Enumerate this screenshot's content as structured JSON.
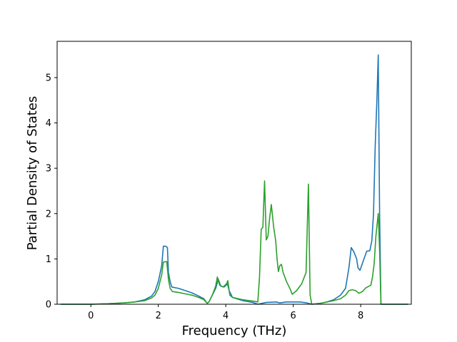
{
  "chart_data": {
    "type": "line",
    "title": "",
    "xlabel": "Frequency (THz)",
    "ylabel": "Partial Density of States",
    "xlim": [
      -1.0,
      9.5
    ],
    "ylim": [
      0,
      5.8
    ],
    "xticks": [
      0,
      2,
      4,
      6,
      8
    ],
    "yticks": [
      0,
      1,
      2,
      3,
      4,
      5
    ],
    "xtick_labels": [
      "0",
      "2",
      "4",
      "6",
      "8"
    ],
    "ytick_labels": [
      "0",
      "1",
      "2",
      "3",
      "4",
      "5"
    ],
    "grid": false,
    "legend": "none",
    "series": [
      {
        "color": "#1f77b4",
        "points": [
          [
            -0.9,
            0.0
          ],
          [
            -0.5,
            0.0
          ],
          [
            0.0,
            0.0
          ],
          [
            0.5,
            0.01
          ],
          [
            1.0,
            0.03
          ],
          [
            1.3,
            0.05
          ],
          [
            1.6,
            0.1
          ],
          [
            1.8,
            0.18
          ],
          [
            1.9,
            0.28
          ],
          [
            2.0,
            0.5
          ],
          [
            2.1,
            0.85
          ],
          [
            2.15,
            1.28
          ],
          [
            2.22,
            1.28
          ],
          [
            2.27,
            1.25
          ],
          [
            2.3,
            0.7
          ],
          [
            2.35,
            0.5
          ],
          [
            2.4,
            0.38
          ],
          [
            2.6,
            0.35
          ],
          [
            2.8,
            0.3
          ],
          [
            3.0,
            0.25
          ],
          [
            3.2,
            0.18
          ],
          [
            3.35,
            0.12
          ],
          [
            3.45,
            0.02
          ],
          [
            3.5,
            0.05
          ],
          [
            3.6,
            0.2
          ],
          [
            3.7,
            0.35
          ],
          [
            3.78,
            0.55
          ],
          [
            3.85,
            0.4
          ],
          [
            3.95,
            0.38
          ],
          [
            4.05,
            0.45
          ],
          [
            4.1,
            0.3
          ],
          [
            4.2,
            0.15
          ],
          [
            4.5,
            0.08
          ],
          [
            4.8,
            0.04
          ],
          [
            4.95,
            0.0
          ],
          [
            5.2,
            0.04
          ],
          [
            5.5,
            0.05
          ],
          [
            5.6,
            0.03
          ],
          [
            5.8,
            0.05
          ],
          [
            6.0,
            0.05
          ],
          [
            6.2,
            0.05
          ],
          [
            6.4,
            0.03
          ],
          [
            6.55,
            0.0
          ],
          [
            6.8,
            0.02
          ],
          [
            7.0,
            0.05
          ],
          [
            7.2,
            0.1
          ],
          [
            7.4,
            0.2
          ],
          [
            7.55,
            0.35
          ],
          [
            7.65,
            0.8
          ],
          [
            7.72,
            1.25
          ],
          [
            7.8,
            1.15
          ],
          [
            7.88,
            1.0
          ],
          [
            7.92,
            0.8
          ],
          [
            7.98,
            0.75
          ],
          [
            8.05,
            0.9
          ],
          [
            8.12,
            1.05
          ],
          [
            8.18,
            1.17
          ],
          [
            8.27,
            1.18
          ],
          [
            8.33,
            1.4
          ],
          [
            8.38,
            2.0
          ],
          [
            8.43,
            3.5
          ],
          [
            8.48,
            4.5
          ],
          [
            8.52,
            5.5
          ],
          [
            8.56,
            2.0
          ],
          [
            8.6,
            0.0
          ],
          [
            9.0,
            0.0
          ],
          [
            9.4,
            0.0
          ]
        ]
      },
      {
        "color": "#2ca02c",
        "points": [
          [
            -0.9,
            0.0
          ],
          [
            -0.5,
            0.0
          ],
          [
            0.0,
            0.0
          ],
          [
            0.5,
            0.01
          ],
          [
            1.0,
            0.03
          ],
          [
            1.3,
            0.05
          ],
          [
            1.6,
            0.08
          ],
          [
            1.8,
            0.14
          ],
          [
            1.9,
            0.2
          ],
          [
            2.0,
            0.35
          ],
          [
            2.1,
            0.65
          ],
          [
            2.15,
            0.93
          ],
          [
            2.25,
            0.94
          ],
          [
            2.3,
            0.55
          ],
          [
            2.35,
            0.35
          ],
          [
            2.42,
            0.28
          ],
          [
            2.6,
            0.26
          ],
          [
            2.8,
            0.23
          ],
          [
            3.0,
            0.2
          ],
          [
            3.2,
            0.15
          ],
          [
            3.35,
            0.1
          ],
          [
            3.45,
            0.02
          ],
          [
            3.5,
            0.05
          ],
          [
            3.6,
            0.2
          ],
          [
            3.7,
            0.4
          ],
          [
            3.75,
            0.6
          ],
          [
            3.82,
            0.42
          ],
          [
            3.92,
            0.38
          ],
          [
            4.02,
            0.45
          ],
          [
            4.06,
            0.52
          ],
          [
            4.12,
            0.2
          ],
          [
            4.2,
            0.15
          ],
          [
            4.5,
            0.1
          ],
          [
            4.8,
            0.07
          ],
          [
            4.95,
            0.05
          ],
          [
            5.0,
            0.6
          ],
          [
            5.05,
            1.65
          ],
          [
            5.1,
            1.7
          ],
          [
            5.15,
            2.72
          ],
          [
            5.2,
            1.42
          ],
          [
            5.25,
            1.5
          ],
          [
            5.3,
            1.9
          ],
          [
            5.35,
            2.2
          ],
          [
            5.42,
            1.7
          ],
          [
            5.48,
            1.4
          ],
          [
            5.52,
            1.0
          ],
          [
            5.56,
            0.72
          ],
          [
            5.6,
            0.85
          ],
          [
            5.65,
            0.88
          ],
          [
            5.7,
            0.7
          ],
          [
            5.8,
            0.5
          ],
          [
            5.9,
            0.35
          ],
          [
            5.97,
            0.22
          ],
          [
            6.1,
            0.3
          ],
          [
            6.25,
            0.45
          ],
          [
            6.38,
            0.7
          ],
          [
            6.45,
            2.65
          ],
          [
            6.5,
            0.2
          ],
          [
            6.55,
            0.0
          ],
          [
            6.8,
            0.02
          ],
          [
            7.0,
            0.05
          ],
          [
            7.2,
            0.08
          ],
          [
            7.4,
            0.12
          ],
          [
            7.55,
            0.2
          ],
          [
            7.65,
            0.3
          ],
          [
            7.75,
            0.32
          ],
          [
            7.85,
            0.3
          ],
          [
            7.95,
            0.24
          ],
          [
            8.05,
            0.28
          ],
          [
            8.15,
            0.36
          ],
          [
            8.3,
            0.42
          ],
          [
            8.35,
            0.6
          ],
          [
            8.4,
            0.9
          ],
          [
            8.45,
            1.5
          ],
          [
            8.52,
            2.0
          ],
          [
            8.56,
            1.2
          ],
          [
            8.6,
            0.0
          ],
          [
            9.0,
            0.0
          ],
          [
            9.4,
            0.0
          ]
        ]
      }
    ]
  }
}
